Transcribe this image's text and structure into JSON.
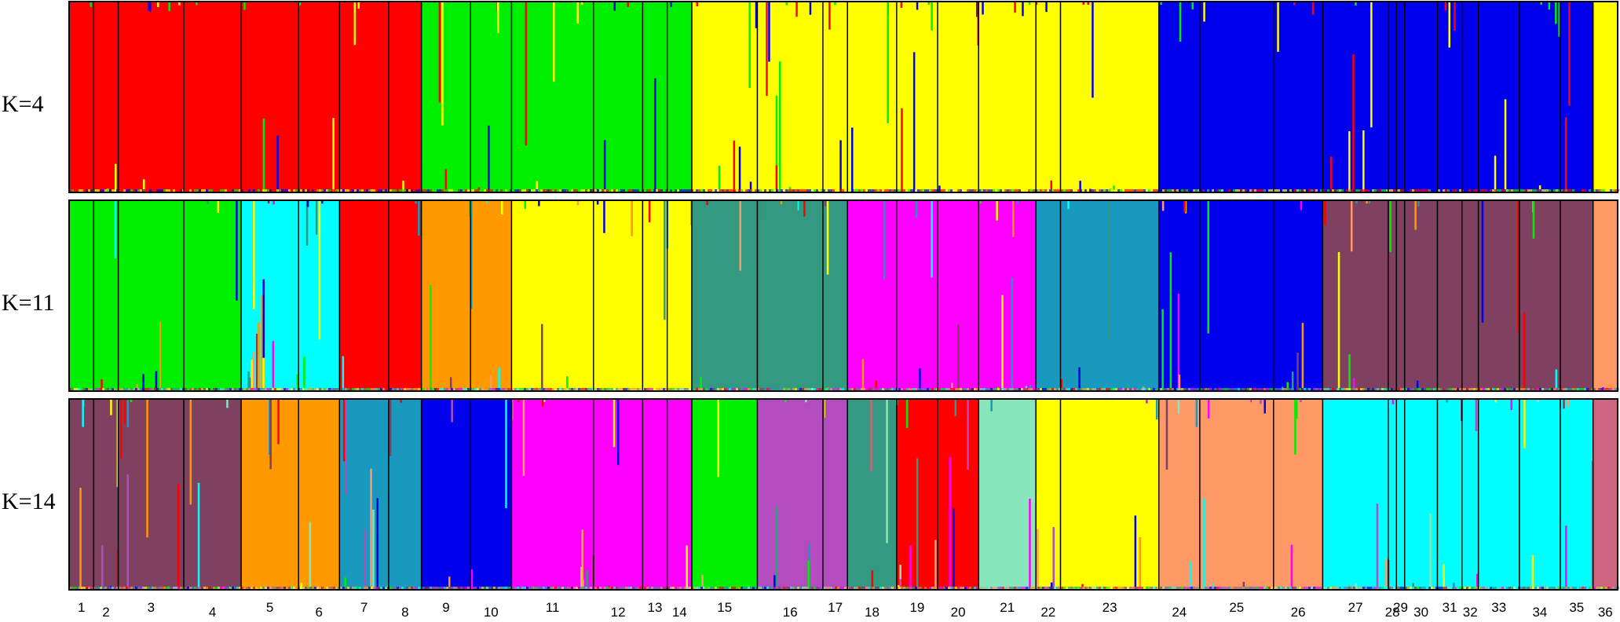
{
  "chart_data": {
    "type": "stacked-bar",
    "description_note": "",
    "populations": [
      "1",
      "2",
      "3",
      "4",
      "5",
      "6",
      "7",
      "8",
      "9",
      "10",
      "11",
      "12",
      "13",
      "14",
      "15",
      "16",
      "17",
      "18",
      "19",
      "20",
      "21",
      "22",
      "23",
      "24",
      "25",
      "26",
      "27",
      "28",
      "29",
      "30",
      "31",
      "32",
      "33",
      "34",
      "35",
      "36"
    ],
    "population_widths": [
      3,
      3,
      8,
      7,
      7,
      5,
      6,
      4,
      6,
      5,
      10,
      6,
      3,
      3,
      8,
      8,
      3,
      6,
      5,
      5,
      7,
      3,
      12,
      5,
      9,
      6,
      8,
      1,
      1,
      4,
      3,
      2,
      5,
      5,
      4,
      3
    ],
    "panels": [
      {
        "label": "K=4",
        "colors": [
          "#ff0000",
          "#00ee00",
          "#ffff00",
          "#0000ee"
        ],
        "pop_cluster": [
          0,
          0,
          0,
          0,
          0,
          0,
          0,
          0,
          1,
          1,
          1,
          1,
          1,
          1,
          2,
          2,
          2,
          2,
          2,
          2,
          2,
          2,
          2,
          3,
          3,
          3,
          3,
          3,
          3,
          3,
          3,
          3,
          3,
          3,
          3,
          2
        ]
      },
      {
        "label": "K=11",
        "colors": [
          "#00ee00",
          "#00ffff",
          "#ff0000",
          "#ff9900",
          "#ffff00",
          "#339980",
          "#ff00ff",
          "#1a99bf",
          "#0000ee",
          "#804060",
          "#ff9966"
        ],
        "pop_cluster": [
          0,
          0,
          0,
          0,
          1,
          1,
          2,
          2,
          3,
          3,
          4,
          4,
          4,
          4,
          5,
          5,
          5,
          6,
          6,
          6,
          6,
          7,
          7,
          8,
          8,
          8,
          9,
          9,
          9,
          9,
          9,
          9,
          9,
          9,
          9,
          10
        ]
      },
      {
        "label": "K=14",
        "colors": [
          "#804060",
          "#ff9900",
          "#1a99bf",
          "#0000ee",
          "#ff00ff",
          "#00ee00",
          "#b34dbf",
          "#339980",
          "#ff0000",
          "#88e6bb",
          "#ffff00",
          "#ff9966",
          "#00ffff",
          "#cc6680"
        ],
        "pop_cluster": [
          0,
          0,
          0,
          0,
          1,
          1,
          2,
          2,
          3,
          3,
          4,
          4,
          4,
          4,
          5,
          6,
          6,
          7,
          8,
          8,
          9,
          10,
          10,
          11,
          11,
          11,
          12,
          12,
          12,
          12,
          12,
          12,
          12,
          12,
          12,
          13
        ]
      }
    ],
    "xlabel": "",
    "ylabel": "",
    "legend": "none"
  }
}
